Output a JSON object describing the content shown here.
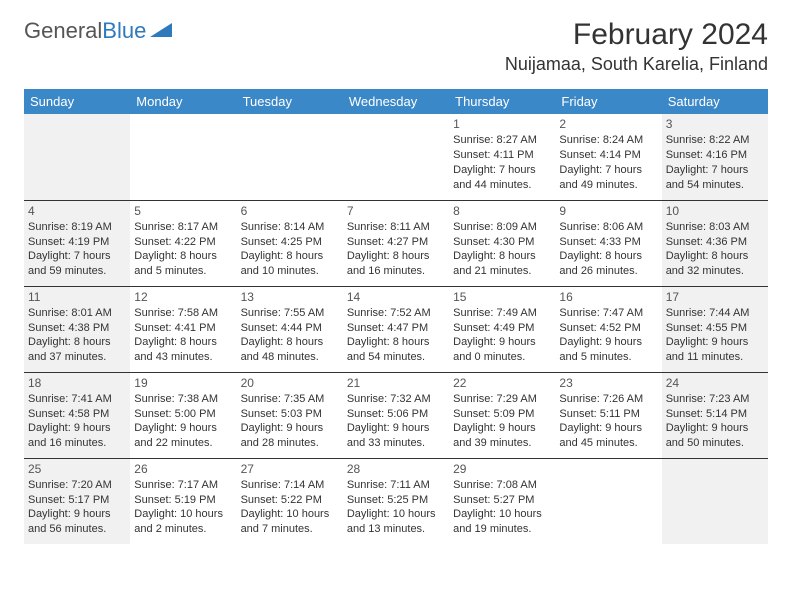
{
  "logo": {
    "text_gray": "General",
    "text_blue": "Blue"
  },
  "title": "February 2024",
  "location": "Nuijamaa, South Karelia, Finland",
  "colors": {
    "header_bg": "#3b88c9",
    "header_fg": "#ffffff",
    "shade_bg": "#f1f1f1",
    "border": "#333333",
    "logo_gray": "#555555",
    "logo_blue": "#2f79bd"
  },
  "weekdays": [
    "Sunday",
    "Monday",
    "Tuesday",
    "Wednesday",
    "Thursday",
    "Friday",
    "Saturday"
  ],
  "weeks": [
    [
      {
        "shaded": true
      },
      {},
      {},
      {},
      {
        "day": "1",
        "sunrise": "8:27 AM",
        "sunset": "4:11 PM",
        "daylight": "7 hours and 44 minutes."
      },
      {
        "day": "2",
        "sunrise": "8:24 AM",
        "sunset": "4:14 PM",
        "daylight": "7 hours and 49 minutes."
      },
      {
        "day": "3",
        "sunrise": "8:22 AM",
        "sunset": "4:16 PM",
        "daylight": "7 hours and 54 minutes.",
        "shaded": true
      }
    ],
    [
      {
        "day": "4",
        "sunrise": "8:19 AM",
        "sunset": "4:19 PM",
        "daylight": "7 hours and 59 minutes.",
        "shaded": true
      },
      {
        "day": "5",
        "sunrise": "8:17 AM",
        "sunset": "4:22 PM",
        "daylight": "8 hours and 5 minutes."
      },
      {
        "day": "6",
        "sunrise": "8:14 AM",
        "sunset": "4:25 PM",
        "daylight": "8 hours and 10 minutes."
      },
      {
        "day": "7",
        "sunrise": "8:11 AM",
        "sunset": "4:27 PM",
        "daylight": "8 hours and 16 minutes."
      },
      {
        "day": "8",
        "sunrise": "8:09 AM",
        "sunset": "4:30 PM",
        "daylight": "8 hours and 21 minutes."
      },
      {
        "day": "9",
        "sunrise": "8:06 AM",
        "sunset": "4:33 PM",
        "daylight": "8 hours and 26 minutes."
      },
      {
        "day": "10",
        "sunrise": "8:03 AM",
        "sunset": "4:36 PM",
        "daylight": "8 hours and 32 minutes.",
        "shaded": true
      }
    ],
    [
      {
        "day": "11",
        "sunrise": "8:01 AM",
        "sunset": "4:38 PM",
        "daylight": "8 hours and 37 minutes.",
        "shaded": true
      },
      {
        "day": "12",
        "sunrise": "7:58 AM",
        "sunset": "4:41 PM",
        "daylight": "8 hours and 43 minutes."
      },
      {
        "day": "13",
        "sunrise": "7:55 AM",
        "sunset": "4:44 PM",
        "daylight": "8 hours and 48 minutes."
      },
      {
        "day": "14",
        "sunrise": "7:52 AM",
        "sunset": "4:47 PM",
        "daylight": "8 hours and 54 minutes."
      },
      {
        "day": "15",
        "sunrise": "7:49 AM",
        "sunset": "4:49 PM",
        "daylight": "9 hours and 0 minutes."
      },
      {
        "day": "16",
        "sunrise": "7:47 AM",
        "sunset": "4:52 PM",
        "daylight": "9 hours and 5 minutes."
      },
      {
        "day": "17",
        "sunrise": "7:44 AM",
        "sunset": "4:55 PM",
        "daylight": "9 hours and 11 minutes.",
        "shaded": true
      }
    ],
    [
      {
        "day": "18",
        "sunrise": "7:41 AM",
        "sunset": "4:58 PM",
        "daylight": "9 hours and 16 minutes.",
        "shaded": true
      },
      {
        "day": "19",
        "sunrise": "7:38 AM",
        "sunset": "5:00 PM",
        "daylight": "9 hours and 22 minutes."
      },
      {
        "day": "20",
        "sunrise": "7:35 AM",
        "sunset": "5:03 PM",
        "daylight": "9 hours and 28 minutes."
      },
      {
        "day": "21",
        "sunrise": "7:32 AM",
        "sunset": "5:06 PM",
        "daylight": "9 hours and 33 minutes."
      },
      {
        "day": "22",
        "sunrise": "7:29 AM",
        "sunset": "5:09 PM",
        "daylight": "9 hours and 39 minutes."
      },
      {
        "day": "23",
        "sunrise": "7:26 AM",
        "sunset": "5:11 PM",
        "daylight": "9 hours and 45 minutes."
      },
      {
        "day": "24",
        "sunrise": "7:23 AM",
        "sunset": "5:14 PM",
        "daylight": "9 hours and 50 minutes.",
        "shaded": true
      }
    ],
    [
      {
        "day": "25",
        "sunrise": "7:20 AM",
        "sunset": "5:17 PM",
        "daylight": "9 hours and 56 minutes.",
        "shaded": true
      },
      {
        "day": "26",
        "sunrise": "7:17 AM",
        "sunset": "5:19 PM",
        "daylight": "10 hours and 2 minutes."
      },
      {
        "day": "27",
        "sunrise": "7:14 AM",
        "sunset": "5:22 PM",
        "daylight": "10 hours and 7 minutes."
      },
      {
        "day": "28",
        "sunrise": "7:11 AM",
        "sunset": "5:25 PM",
        "daylight": "10 hours and 13 minutes."
      },
      {
        "day": "29",
        "sunrise": "7:08 AM",
        "sunset": "5:27 PM",
        "daylight": "10 hours and 19 minutes."
      },
      {},
      {
        "shaded": true
      }
    ]
  ],
  "labels": {
    "sunrise": "Sunrise:",
    "sunset": "Sunset:",
    "daylight": "Daylight:"
  }
}
